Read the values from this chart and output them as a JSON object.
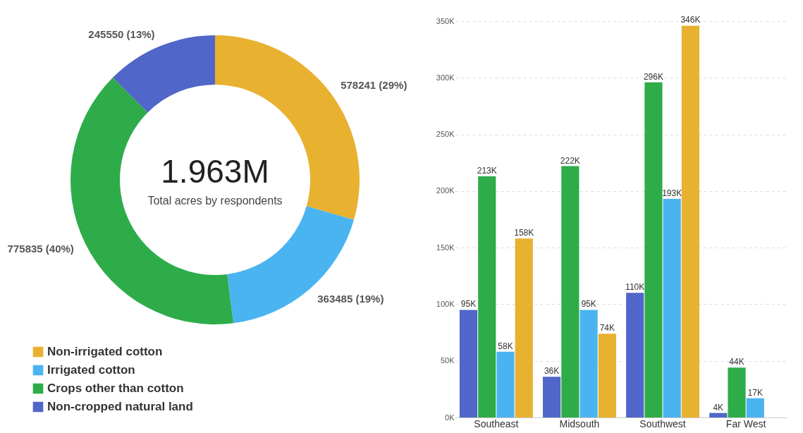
{
  "chart_data": [
    {
      "type": "donut",
      "categories": [
        "Non-irrigated cotton",
        "Irrigated cotton",
        "Crops other than cotton",
        "Non-cropped natural land"
      ],
      "values": [
        578241,
        363485,
        775835,
        245550
      ],
      "value_labels": [
        "578241 (29%)",
        "363485 (19%)",
        "775835 (40%)",
        "245550 (13%)"
      ],
      "colors": [
        "#e8b130",
        "#4ab4f0",
        "#2eac4a",
        "#5066c8"
      ],
      "annotations": [
        "1.963M",
        "Total acres by respondents"
      ],
      "legend": "bottom"
    },
    {
      "type": "bar",
      "categories": [
        "Southeast",
        "Midsouth",
        "Southwest",
        "Far West"
      ],
      "series": [
        {
          "color": "#5066c8",
          "values": [
            95000,
            36000,
            110000,
            4000
          ],
          "value_labels": [
            "95K",
            "36K",
            "110K",
            "4K"
          ]
        },
        {
          "color": "#2eac4a",
          "values": [
            213000,
            222000,
            296000,
            44000
          ],
          "value_labels": [
            "213K",
            "222K",
            "296K",
            "44K"
          ]
        },
        {
          "color": "#4ab4f0",
          "values": [
            58000,
            95000,
            193000,
            17000
          ],
          "value_labels": [
            "58K",
            "95K",
            "193K",
            "17K"
          ]
        },
        {
          "color": "#e8b130",
          "values": [
            158000,
            74000,
            346000,
            null
          ],
          "value_labels": [
            "158K",
            "74K",
            "346K",
            null
          ]
        }
      ],
      "ylim": [
        0,
        350000
      ],
      "yticks": [
        {
          "value": 0,
          "label": "0K"
        },
        {
          "value": 50000,
          "label": "50K"
        },
        {
          "value": 100000,
          "label": "100K"
        },
        {
          "value": 150000,
          "label": "150K"
        },
        {
          "value": 200000,
          "label": "200K"
        },
        {
          "value": 250000,
          "label": "250K"
        },
        {
          "value": 300000,
          "label": "300K"
        },
        {
          "value": 350000,
          "label": "350K"
        }
      ],
      "grid": "y"
    }
  ]
}
